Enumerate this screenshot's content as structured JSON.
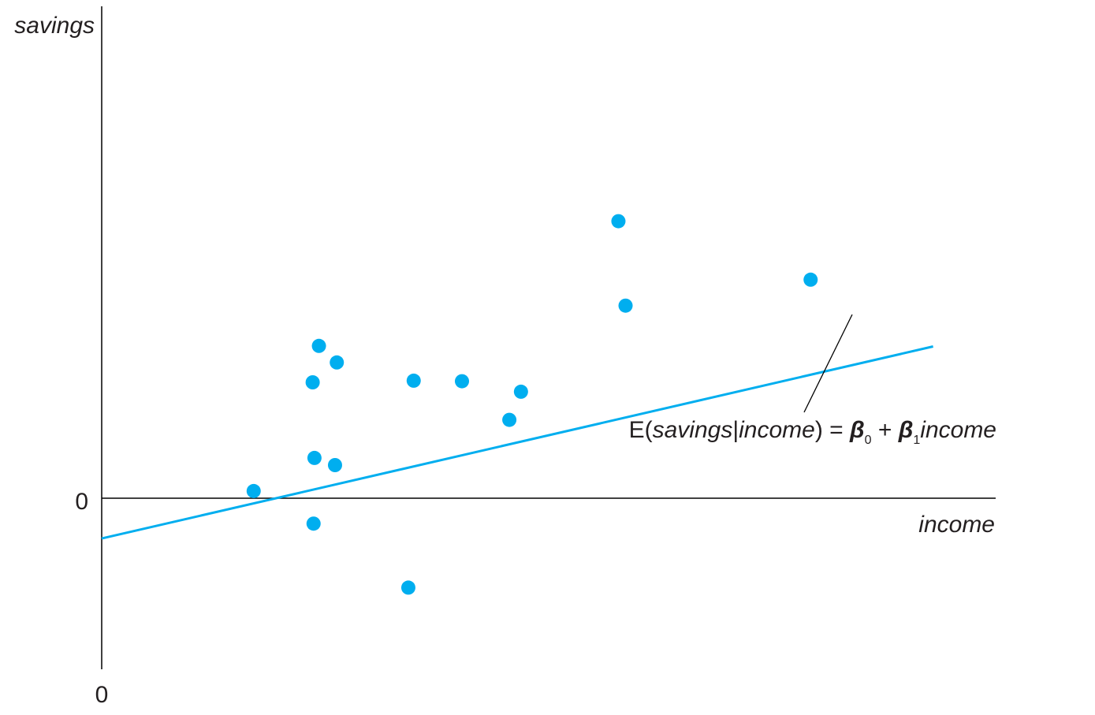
{
  "chart_data": {
    "type": "scatter",
    "title": "",
    "xlabel": "income",
    "ylabel": "savings",
    "x_origin_label": "0",
    "y_origin_label": "0",
    "xlim": [
      0,
      100
    ],
    "ylim": [
      -30,
      80
    ],
    "grid": false,
    "legend": "none",
    "points_color": "#00aeef",
    "line_color": "#00aeef",
    "axis_color": "#000000",
    "points": [
      {
        "x": 17.0,
        "y": 1.3
      },
      {
        "x": 23.6,
        "y": 21.0
      },
      {
        "x": 24.3,
        "y": 27.6
      },
      {
        "x": 26.3,
        "y": 24.6
      },
      {
        "x": 23.8,
        "y": 7.3
      },
      {
        "x": 26.1,
        "y": 6.0
      },
      {
        "x": 23.7,
        "y": -4.6
      },
      {
        "x": 34.3,
        "y": -16.2
      },
      {
        "x": 34.9,
        "y": 21.3
      },
      {
        "x": 40.3,
        "y": 21.2
      },
      {
        "x": 45.6,
        "y": 14.2
      },
      {
        "x": 46.9,
        "y": 19.3
      },
      {
        "x": 57.8,
        "y": 50.2
      },
      {
        "x": 58.6,
        "y": 34.9
      },
      {
        "x": 79.3,
        "y": 39.6
      }
    ],
    "regression_line": {
      "label_prefix": "E(",
      "label_var1": "savings",
      "label_bar": "|",
      "label_var2": "income",
      "label_close": ") = ",
      "beta0_symbol": "β",
      "beta0_sub": "0",
      "plus": " + ",
      "beta1_symbol": "β",
      "beta1_sub": "1",
      "label_var3": "income",
      "x": [
        0,
        93
      ],
      "y": [
        -7.3,
        27.5
      ]
    }
  }
}
